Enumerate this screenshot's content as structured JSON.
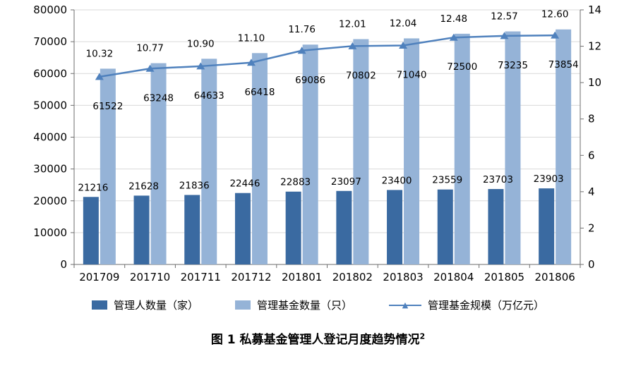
{
  "chart_data": {
    "type": "bar",
    "title": "",
    "categories": [
      "201709",
      "201710",
      "201711",
      "201712",
      "201801",
      "201802",
      "201803",
      "201804",
      "201805",
      "201806"
    ],
    "series": [
      {
        "name": "管理人数量（家）",
        "chart_type": "bar",
        "axis": "left",
        "color": "#3a6aa1",
        "values": [
          21216,
          21628,
          21836,
          22446,
          22883,
          23097,
          23400,
          23559,
          23703,
          23903
        ]
      },
      {
        "name": "管理基金数量（只）",
        "chart_type": "bar",
        "axis": "left",
        "color": "#95b3d7",
        "values": [
          61522,
          63248,
          64633,
          66418,
          69086,
          70802,
          71040,
          72500,
          73235,
          73854
        ]
      },
      {
        "name": "管理基金规模（万亿元）",
        "chart_type": "line",
        "axis": "right",
        "color": "#4f81bd",
        "values": [
          10.32,
          10.77,
          10.9,
          11.1,
          11.76,
          12.01,
          12.04,
          12.48,
          12.57,
          12.6
        ],
        "labels": [
          "10.32",
          "10.77",
          "10.90",
          "11.10",
          "11.76",
          "12.01",
          "12.04",
          "12.48",
          "12.57",
          "12.60"
        ]
      }
    ],
    "left_axis": {
      "min": 0,
      "max": 80000,
      "step": 10000,
      "tick_labels": [
        "0",
        "10000",
        "20000",
        "30000",
        "40000",
        "50000",
        "60000",
        "70000",
        "80000"
      ]
    },
    "right_axis": {
      "min": 0,
      "max": 14,
      "step": 2,
      "tick_labels": [
        "0",
        "2",
        "4",
        "6",
        "8",
        "10",
        "12",
        "14"
      ]
    },
    "grid": true,
    "legend_position": "bottom",
    "background": "#ffffff"
  },
  "icons": {
    "line_marker": "▲"
  },
  "caption": {
    "text": "图 1 私募基金管理人登记月度趋势情况",
    "sup": "2"
  }
}
